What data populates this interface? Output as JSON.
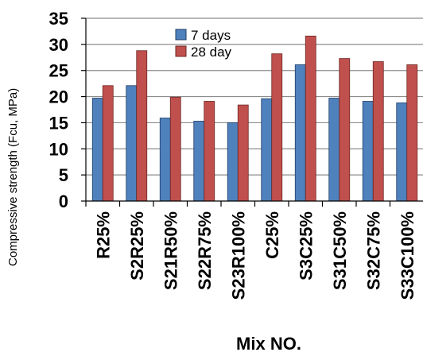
{
  "chart_data": {
    "type": "bar",
    "xlabel": "Mix NO.",
    "ylabel": "Compressive strength (Fcu, MPa)",
    "ylim": [
      0,
      35
    ],
    "yticks": [
      0,
      5,
      10,
      15,
      20,
      25,
      30,
      35
    ],
    "grid": "horizontal",
    "legend_position": "top",
    "categories": [
      "R25%",
      "S2R25%",
      "S21R50%",
      "S22R75%",
      "S23R100%",
      "C25%",
      "S3C25%",
      "S31C50%",
      "S32C75%",
      "S33C100%"
    ],
    "series": [
      {
        "name": "7 days",
        "color": "#4F81BD",
        "values": [
          19.7,
          22.1,
          15.9,
          15.3,
          15.0,
          19.6,
          26.1,
          19.7,
          19.1,
          18.8
        ]
      },
      {
        "name": "28 day",
        "color": "#C0504D",
        "values": [
          22.1,
          28.8,
          19.9,
          19.1,
          18.4,
          28.2,
          31.6,
          27.3,
          26.7,
          26.1
        ]
      }
    ]
  }
}
